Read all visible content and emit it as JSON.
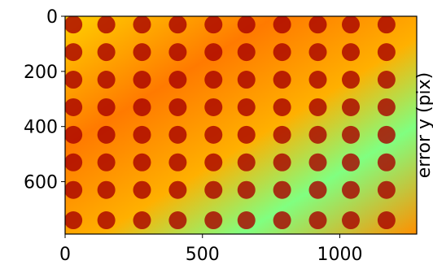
{
  "chart_data": {
    "type": "scatter",
    "colorbar_label": "error y (pix)",
    "color": "#a80000",
    "x": [
      30,
      150,
      280,
      410,
      540,
      660,
      790,
      920,
      1040,
      1170,
      30,
      150,
      280,
      410,
      540,
      660,
      790,
      920,
      1040,
      1170,
      30,
      150,
      280,
      410,
      540,
      660,
      790,
      920,
      1040,
      1170,
      30,
      150,
      280,
      410,
      540,
      660,
      790,
      920,
      1040,
      1170,
      30,
      150,
      280,
      410,
      540,
      660,
      790,
      920,
      1040,
      1170,
      30,
      150,
      280,
      410,
      540,
      660,
      790,
      920,
      1040,
      1170,
      30,
      150,
      280,
      410,
      540,
      660,
      790,
      920,
      1040,
      1170,
      30,
      150,
      280,
      410,
      540,
      660,
      790,
      920,
      1040,
      1170
    ],
    "values": [
      30,
      30,
      30,
      30,
      30,
      30,
      30,
      30,
      30,
      30,
      130,
      130,
      130,
      130,
      130,
      130,
      130,
      130,
      130,
      130,
      230,
      230,
      230,
      230,
      230,
      230,
      230,
      230,
      230,
      230,
      330,
      330,
      330,
      330,
      330,
      330,
      330,
      330,
      330,
      330,
      430,
      430,
      430,
      430,
      430,
      430,
      430,
      430,
      430,
      430,
      530,
      530,
      530,
      530,
      530,
      530,
      530,
      530,
      530,
      530,
      630,
      630,
      630,
      630,
      630,
      630,
      630,
      630,
      630,
      630,
      740,
      740,
      740,
      740,
      740,
      740,
      740,
      740,
      740,
      740
    ],
    "xlim": [
      0,
      1280
    ],
    "xticks": [
      0,
      500,
      1000
    ],
    "ylim": [
      790,
      0
    ],
    "yticks": [
      0,
      200,
      400,
      600
    ]
  }
}
